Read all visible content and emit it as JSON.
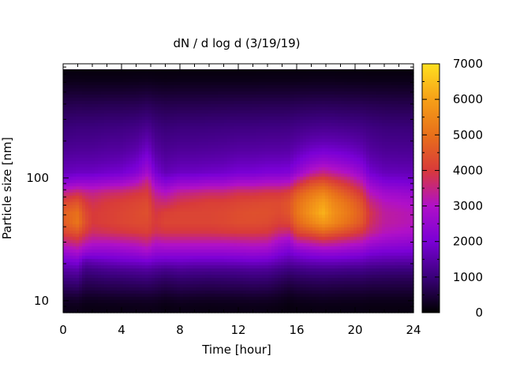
{
  "chart_data": {
    "type": "heatmap",
    "title": "dN / d log d (3/19/19)",
    "xlabel": "Time [hour]",
    "ylabel": "Particle size [nm]",
    "xlim": [
      0,
      24
    ],
    "x_ticks": [
      "0",
      "4",
      "8",
      "12",
      "16",
      "20",
      "24"
    ],
    "y_scale": "log",
    "ylim": [
      8,
      850
    ],
    "y_ticks": [
      "10",
      "100"
    ],
    "colorbar": {
      "range": [
        0,
        7000
      ],
      "ticks": [
        "0",
        "1000",
        "2000",
        "3000",
        "4000",
        "5000",
        "6000",
        "7000"
      ],
      "palette": [
        "#000000",
        "#3a007a",
        "#7a00d6",
        "#b010c8",
        "#d83a3a",
        "#e8701a",
        "#f6a018",
        "#ffe020"
      ]
    },
    "grid": false,
    "legend": "none",
    "times": [
      0,
      1,
      1.5,
      2,
      3,
      4,
      5,
      5.8,
      6.3,
      7,
      8,
      9,
      10,
      11,
      12,
      13,
      14,
      14.8,
      15.5,
      16,
      17,
      17.8,
      18.5,
      19.5,
      20.5,
      21,
      22,
      23,
      24
    ],
    "sizes": [
      9,
      10.5,
      12.5,
      15,
      18,
      21,
      25,
      30,
      36,
      43,
      52,
      63,
      76,
      92,
      110,
      135,
      165,
      200,
      250,
      310,
      390,
      490,
      620,
      800
    ],
    "values": [
      [
        200,
        380,
        700,
        1050,
        1450,
        1950,
        2600,
        3400,
        4200,
        4600,
        4700,
        4200,
        3400,
        2300,
        1700,
        1500,
        1300,
        1150,
        1000,
        850,
        650,
        420,
        200,
        80
      ],
      [
        220,
        400,
        750,
        1100,
        1550,
        2100,
        2900,
        3700,
        4500,
        5100,
        5000,
        4500,
        3700,
        2500,
        1800,
        1550,
        1350,
        1200,
        1050,
        880,
        680,
        430,
        210,
        80
      ],
      [
        170,
        300,
        550,
        800,
        1100,
        1550,
        2500,
        3300,
        4000,
        4400,
        4300,
        4000,
        3500,
        2500,
        1800,
        1550,
        1350,
        1200,
        1050,
        880,
        670,
        420,
        200,
        80
      ],
      [
        170,
        300,
        560,
        820,
        1150,
        1650,
        2400,
        3100,
        3700,
        4000,
        4000,
        3800,
        3400,
        2500,
        1800,
        1550,
        1350,
        1200,
        1050,
        880,
        670,
        420,
        200,
        80
      ],
      [
        180,
        320,
        600,
        880,
        1250,
        1750,
        2400,
        3100,
        3800,
        4100,
        4100,
        4000,
        3600,
        2600,
        1900,
        1600,
        1400,
        1250,
        1080,
        900,
        690,
        430,
        200,
        80
      ],
      [
        190,
        340,
        620,
        900,
        1300,
        1850,
        2500,
        3200,
        3900,
        4200,
        4200,
        4100,
        3700,
        2700,
        1950,
        1650,
        1420,
        1260,
        1100,
        900,
        690,
        430,
        200,
        80
      ],
      [
        200,
        350,
        640,
        950,
        1350,
        1900,
        2600,
        3300,
        4000,
        4300,
        4300,
        4200,
        3900,
        3000,
        2200,
        1850,
        1550,
        1350,
        1150,
        930,
        700,
        440,
        210,
        80
      ],
      [
        210,
        360,
        660,
        980,
        1400,
        2000,
        2800,
        3500,
        4100,
        4300,
        4400,
        4300,
        4000,
        3600,
        2800,
        2300,
        1900,
        1600,
        1300,
        1000,
        760,
        470,
        220,
        80
      ],
      [
        200,
        340,
        620,
        900,
        1300,
        1850,
        2500,
        3100,
        3800,
        4000,
        3900,
        3700,
        3300,
        2600,
        2000,
        1700,
        1450,
        1280,
        1100,
        900,
        690,
        430,
        200,
        80
      ],
      [
        150,
        280,
        540,
        820,
        1200,
        1800,
        2500,
        3200,
        3900,
        4200,
        4100,
        3600,
        3000,
        2200,
        1650,
        1450,
        1280,
        1150,
        1000,
        840,
        650,
        410,
        190,
        80
      ],
      [
        190,
        340,
        620,
        900,
        1300,
        1850,
        2500,
        3200,
        3900,
        4200,
        4200,
        3900,
        3400,
        2500,
        1800,
        1550,
        1350,
        1200,
        1050,
        870,
        660,
        420,
        200,
        80
      ],
      [
        180,
        320,
        600,
        880,
        1250,
        1800,
        2500,
        3200,
        3900,
        4200,
        4200,
        4000,
        3500,
        2500,
        1800,
        1550,
        1350,
        1200,
        1050,
        870,
        660,
        420,
        200,
        80
      ],
      [
        170,
        310,
        580,
        860,
        1250,
        1800,
        2500,
        3200,
        3900,
        4200,
        4200,
        4100,
        3600,
        2600,
        1850,
        1580,
        1370,
        1220,
        1060,
        880,
        670,
        420,
        200,
        80
      ],
      [
        180,
        320,
        600,
        880,
        1250,
        1800,
        2500,
        3200,
        3950,
        4250,
        4250,
        4100,
        3600,
        2600,
        1900,
        1600,
        1400,
        1240,
        1080,
        890,
        680,
        430,
        200,
        80
      ],
      [
        190,
        330,
        610,
        900,
        1280,
        1850,
        2550,
        3250,
        4000,
        4350,
        4350,
        4200,
        3800,
        2800,
        2000,
        1700,
        1450,
        1280,
        1100,
        900,
        690,
        430,
        200,
        80
      ],
      [
        200,
        350,
        640,
        940,
        1330,
        1900,
        2600,
        3300,
        4000,
        4350,
        4400,
        4250,
        3800,
        2800,
        2000,
        1700,
        1450,
        1280,
        1100,
        900,
        690,
        430,
        200,
        80
      ],
      [
        190,
        340,
        620,
        920,
        1300,
        1850,
        2550,
        3250,
        3950,
        4300,
        4400,
        4300,
        3900,
        2900,
        2100,
        1750,
        1480,
        1300,
        1120,
        910,
        700,
        440,
        210,
        80
      ],
      [
        160,
        280,
        520,
        800,
        1150,
        1650,
        2200,
        2800,
        3600,
        4100,
        4300,
        4300,
        3900,
        2900,
        2100,
        1750,
        1480,
        1300,
        1120,
        910,
        700,
        440,
        210,
        80
      ],
      [
        120,
        220,
        420,
        700,
        1050,
        1500,
        2000,
        2600,
        3500,
        4200,
        4500,
        4500,
        4100,
        3000,
        2150,
        1780,
        1500,
        1320,
        1130,
        920,
        700,
        440,
        210,
        80
      ],
      [
        150,
        260,
        480,
        760,
        1100,
        1600,
        2200,
        3200,
        4200,
        4800,
        5100,
        5000,
        4600,
        3600,
        2500,
        2000,
        1650,
        1400,
        1180,
        950,
        720,
        450,
        210,
        80
      ],
      [
        160,
        280,
        520,
        800,
        1180,
        1700,
        2400,
        3400,
        4500,
        5400,
        5800,
        5600,
        5100,
        4300,
        3200,
        2400,
        1900,
        1550,
        1250,
        980,
        740,
        460,
        220,
        80
      ],
      [
        170,
        300,
        540,
        820,
        1200,
        1750,
        2500,
        3600,
        4800,
        5800,
        6300,
        6000,
        5400,
        4500,
        3500,
        2600,
        2000,
        1600,
        1280,
        1000,
        750,
        460,
        220,
        80
      ],
      [
        160,
        290,
        520,
        800,
        1200,
        1750,
        2500,
        3500,
        4600,
        5500,
        5700,
        5500,
        5000,
        4200,
        3300,
        2500,
        1950,
        1580,
        1270,
        990,
        740,
        460,
        220,
        80
      ],
      [
        160,
        280,
        500,
        780,
        1150,
        1700,
        2400,
        3300,
        4300,
        5000,
        5200,
        5000,
        4500,
        3800,
        3000,
        2300,
        1850,
        1520,
        1230,
        960,
        720,
        450,
        210,
        80
      ],
      [
        160,
        280,
        500,
        780,
        1150,
        1650,
        2300,
        3100,
        3900,
        4500,
        4600,
        4400,
        3900,
        3200,
        2500,
        2000,
        1650,
        1400,
        1170,
        940,
        710,
        440,
        210,
        80
      ],
      [
        150,
        260,
        480,
        740,
        1080,
        1550,
        2100,
        2800,
        3500,
        3800,
        3900,
        3600,
        3100,
        2500,
        1950,
        1650,
        1420,
        1260,
        1100,
        900,
        690,
        430,
        200,
        80
      ],
      [
        150,
        260,
        480,
        720,
        1050,
        1500,
        2000,
        2600,
        3100,
        3300,
        3300,
        3100,
        2700,
        2100,
        1700,
        1480,
        1300,
        1170,
        1030,
        860,
        660,
        420,
        200,
        80
      ],
      [
        150,
        260,
        470,
        710,
        1040,
        1480,
        2000,
        2500,
        3000,
        3200,
        3200,
        3000,
        2600,
        2050,
        1680,
        1460,
        1290,
        1160,
        1020,
        850,
        650,
        410,
        200,
        80
      ],
      [
        150,
        260,
        470,
        710,
        1040,
        1480,
        1950,
        2450,
        2900,
        3100,
        3100,
        2900,
        2500,
        2000,
        1650,
        1450,
        1280,
        1150,
        1010,
        850,
        650,
        410,
        200,
        80
      ]
    ]
  }
}
